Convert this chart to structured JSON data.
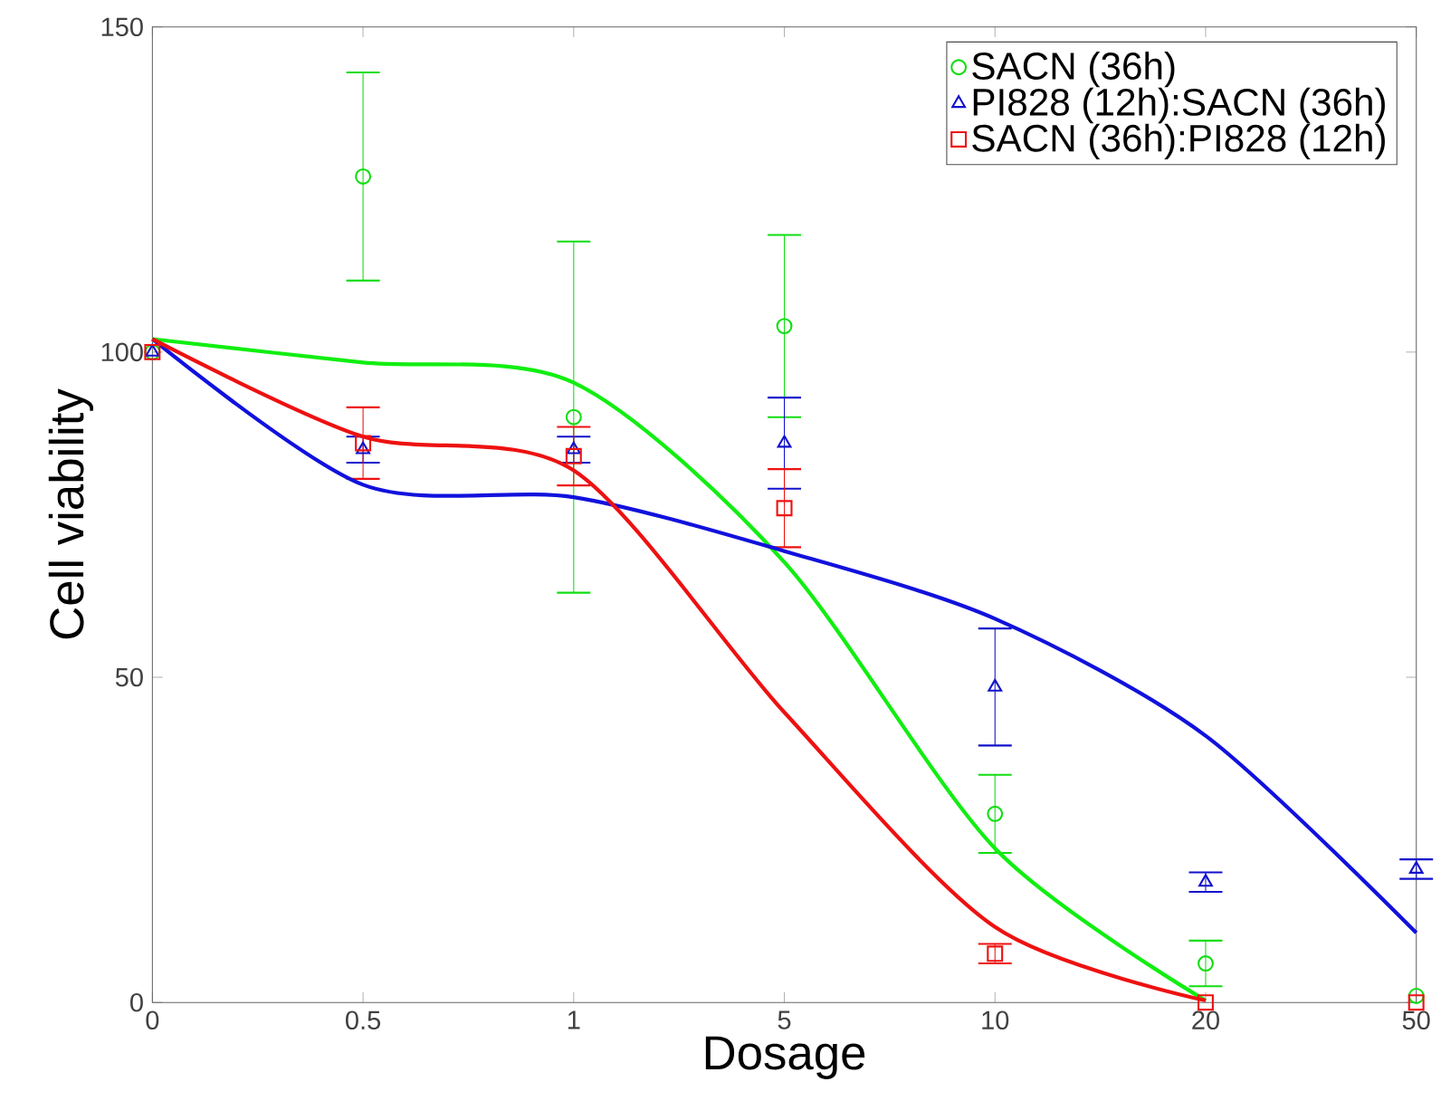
{
  "chart_data": {
    "type": "scatter",
    "xlabel": "Dosage",
    "ylabel": "Cell viability",
    "categories": [
      "0",
      "0.5",
      "1",
      "5",
      "10",
      "20",
      "50"
    ],
    "ylim": [
      0,
      150
    ],
    "yticks": [
      0,
      50,
      100,
      150
    ],
    "grid": false,
    "legend": "top right",
    "series": [
      {
        "name": "SACN (36h)",
        "marker": "circle",
        "color": "#11dd11",
        "values": [
          100,
          127,
          90,
          104,
          29,
          6,
          1
        ],
        "errors": [
          null,
          16,
          27,
          14,
          6,
          3.5,
          null
        ]
      },
      {
        "name": "PI828 (12h):SACN (36h)",
        "marker": "triangle",
        "color": "#1111cc",
        "values": [
          100,
          85,
          85,
          86,
          48.5,
          18.5,
          20.5
        ],
        "errors": [
          null,
          2,
          2,
          7,
          9,
          1.5,
          1.5
        ]
      },
      {
        "name": "SACN (36h):PI828 (12h)",
        "marker": "square",
        "color": "#ee1111",
        "values": [
          100,
          86,
          84,
          76,
          7.5,
          0,
          0
        ],
        "errors": [
          null,
          5.5,
          4.5,
          6,
          1.5,
          null,
          null
        ]
      },
      {
        "type": "line",
        "marker": "none",
        "line_style": "solid",
        "color": "#11ee11",
        "values": [
          102,
          98.4,
          95.3,
          67.7,
          23.7,
          0.3,
          null
        ]
      },
      {
        "type": "line",
        "marker": "none",
        "line_style": "solid",
        "color": "#1111dd",
        "values": [
          102,
          79.6,
          77.7,
          69.4,
          59,
          41,
          10.7
        ]
      },
      {
        "type": "line",
        "marker": "none",
        "line_style": "solid",
        "color": "#ee1111",
        "values": [
          102,
          87,
          81.8,
          44.6,
          11.6,
          0.3,
          null
        ]
      }
    ]
  }
}
